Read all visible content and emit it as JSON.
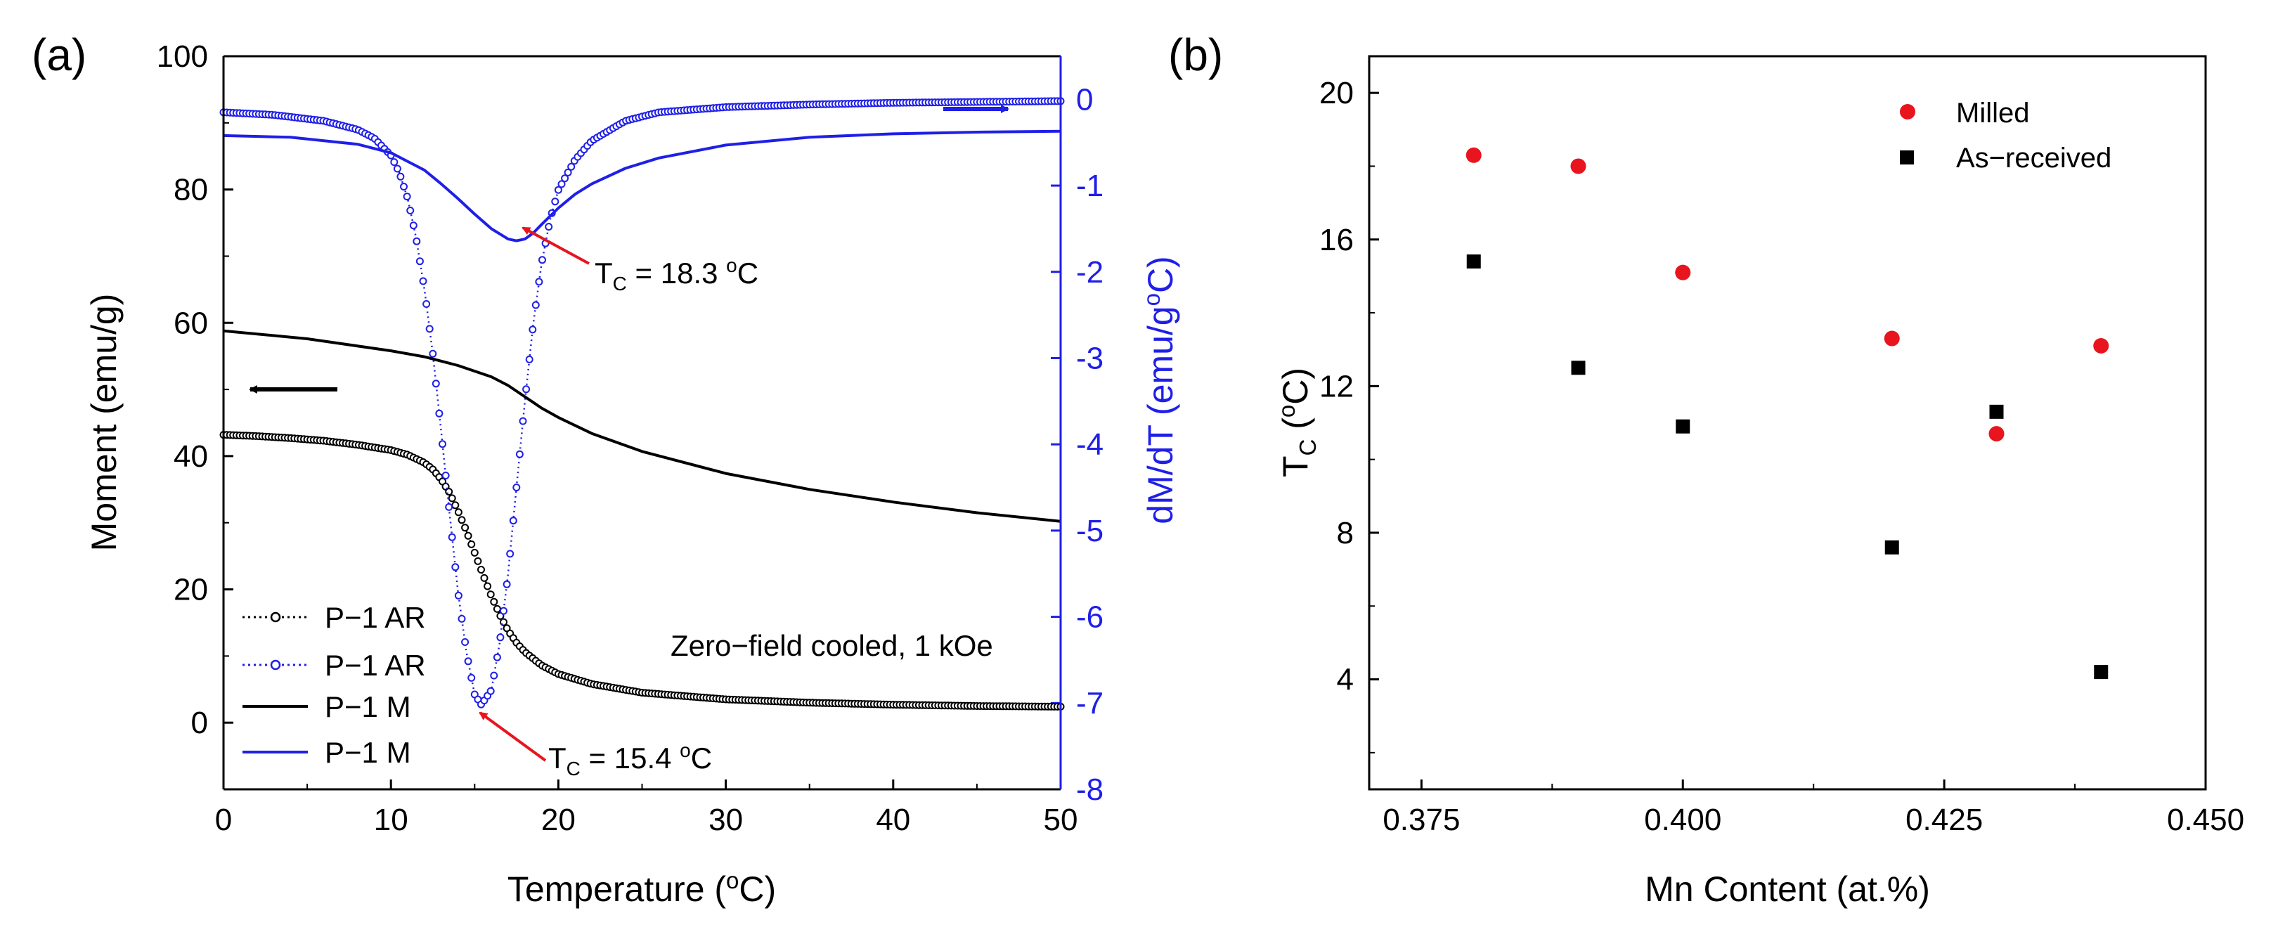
{
  "figure": {
    "width_note": "two-panel figure"
  },
  "panel_a": {
    "label": "(a)",
    "annotation_zfc": "Zero−field cooled, 1 kOe",
    "tc_ar": {
      "sub": "C",
      "text_pre": "T",
      "text_post": " = 15.4 ",
      "unit": "C",
      "deg": "o"
    },
    "tc_m": {
      "sub": "C",
      "text_pre": "T",
      "text_post": " = 18.3 ",
      "unit": "C",
      "deg": "o"
    },
    "legend": [
      "P−1 AR",
      "P−1 AR",
      "P−1 M",
      "P−1 M"
    ],
    "xlabel_pre": "Temperature (",
    "xlabel_deg": "o",
    "xlabel_post": "C)",
    "ylabel_left": "Moment (emu/g)",
    "ylabel_right_pre": "dM/dT (emu/g",
    "ylabel_right_deg": "o",
    "ylabel_right_post": "C)",
    "colors": {
      "black": "#000000",
      "blue": "#1f1fe8",
      "red": "#e8141e"
    }
  },
  "panel_b": {
    "label": "(b)",
    "xlabel": "Mn Content (at.%)",
    "ylabel_pre": "T",
    "ylabel_sub": "C",
    "ylabel_mid": " (",
    "ylabel_deg": "o",
    "ylabel_post": "C)",
    "legend": [
      "Milled",
      "As−received"
    ],
    "colors": {
      "milled": "#e8141e",
      "asreceived": "#000000"
    }
  },
  "chart_data": [
    {
      "type": "line",
      "title": "",
      "xlabel": "Temperature (oC)",
      "ylabel": "Moment (emu/g)",
      "y2label": "dM/dT (emu/goC)",
      "xlim": [
        0,
        50
      ],
      "ylim": [
        -10,
        100
      ],
      "y2lim": [
        -8,
        0.5
      ],
      "xticks": [
        0,
        10,
        20,
        30,
        40,
        50
      ],
      "yticks": [
        0,
        20,
        40,
        60,
        80,
        100
      ],
      "y2ticks": [
        0,
        -1,
        -2,
        -3,
        -4,
        -5,
        -6,
        -7,
        -8
      ],
      "series": [
        {
          "name": "P−1 AR",
          "axis": "left",
          "style": "dotted-circles",
          "color": "#000000",
          "x": [
            0,
            2,
            4,
            6,
            8,
            10,
            11,
            12,
            12.5,
            13,
            13.5,
            14,
            14.5,
            15,
            15.5,
            16,
            16.5,
            17,
            17.5,
            18,
            19,
            20,
            22,
            25,
            30,
            35,
            40,
            45,
            50
          ],
          "y": [
            43.2,
            43.0,
            42.7,
            42.3,
            41.7,
            40.9,
            40.2,
            39.0,
            38.0,
            36.5,
            34.5,
            31.8,
            28.8,
            25.5,
            22.2,
            19.0,
            16.2,
            13.8,
            12.0,
            10.6,
            8.6,
            7.3,
            5.8,
            4.5,
            3.5,
            3.0,
            2.7,
            2.5,
            2.4
          ]
        },
        {
          "name": "P−1 AR",
          "axis": "right",
          "style": "dotted-circles",
          "color": "#1f1fe8",
          "x": [
            0,
            3,
            6,
            8,
            9,
            10,
            10.5,
            11,
            11.5,
            12,
            12.5,
            13,
            13.5,
            14,
            14.5,
            15,
            15.4,
            16,
            16.5,
            17,
            17.5,
            18,
            18.5,
            19,
            19.5,
            20,
            21,
            22,
            24,
            26,
            30,
            35,
            40,
            45,
            50
          ],
          "y": [
            -0.15,
            -0.18,
            -0.25,
            -0.35,
            -0.45,
            -0.65,
            -0.85,
            -1.15,
            -1.6,
            -2.2,
            -2.95,
            -3.85,
            -4.8,
            -5.7,
            -6.4,
            -6.9,
            -7.02,
            -6.85,
            -6.3,
            -5.5,
            -4.5,
            -3.5,
            -2.6,
            -1.9,
            -1.4,
            -1.05,
            -0.7,
            -0.48,
            -0.25,
            -0.15,
            -0.09,
            -0.06,
            -0.04,
            -0.03,
            -0.02
          ]
        },
        {
          "name": "P−1 M",
          "axis": "left",
          "style": "solid",
          "color": "#000000",
          "x": [
            0,
            5,
            10,
            12,
            14,
            16,
            17,
            18,
            19,
            20,
            22,
            25,
            30,
            35,
            40,
            45,
            50
          ],
          "y": [
            58.8,
            57.6,
            55.8,
            54.9,
            53.6,
            51.9,
            50.6,
            48.9,
            47.2,
            45.8,
            43.4,
            40.7,
            37.4,
            35.0,
            33.1,
            31.5,
            30.2
          ]
        },
        {
          "name": "P−1 M",
          "axis": "right",
          "style": "solid",
          "color": "#1f1fe8",
          "x": [
            0,
            4,
            8,
            10,
            12,
            13,
            14,
            15,
            16,
            17,
            17.5,
            18,
            18.5,
            19,
            20,
            21,
            22,
            24,
            26,
            30,
            35,
            40,
            45,
            50
          ],
          "y": [
            -0.42,
            -0.44,
            -0.52,
            -0.62,
            -0.82,
            -0.98,
            -1.15,
            -1.33,
            -1.5,
            -1.62,
            -1.64,
            -1.62,
            -1.55,
            -1.45,
            -1.26,
            -1.1,
            -0.98,
            -0.8,
            -0.68,
            -0.53,
            -0.44,
            -0.4,
            -0.38,
            -0.37
          ]
        }
      ],
      "annotations": [
        "Zero−field cooled, 1 kOe",
        "TC = 18.3 oC",
        "TC = 15.4 oC"
      ]
    },
    {
      "type": "scatter",
      "title": "",
      "xlabel": "Mn Content (at.%)",
      "ylabel": "TC (oC)",
      "xlim": [
        0.37,
        0.45
      ],
      "ylim": [
        1,
        21
      ],
      "xticks": [
        "0.375",
        "0.400",
        "0.425",
        "0.450"
      ],
      "yticks": [
        "4",
        "8",
        "12",
        "16",
        "20"
      ],
      "series": [
        {
          "name": "Milled",
          "marker": "circle",
          "color": "#e8141e",
          "x": [
            0.38,
            0.39,
            0.4,
            0.42,
            0.43,
            0.44
          ],
          "y": [
            18.3,
            18.0,
            15.1,
            13.3,
            10.7,
            13.1
          ]
        },
        {
          "name": "As−received",
          "marker": "square",
          "color": "#000000",
          "x": [
            0.38,
            0.39,
            0.4,
            0.42,
            0.43,
            0.44
          ],
          "y": [
            15.4,
            12.5,
            10.9,
            7.6,
            11.3,
            4.2
          ]
        }
      ],
      "legend_position": "top-right"
    }
  ]
}
